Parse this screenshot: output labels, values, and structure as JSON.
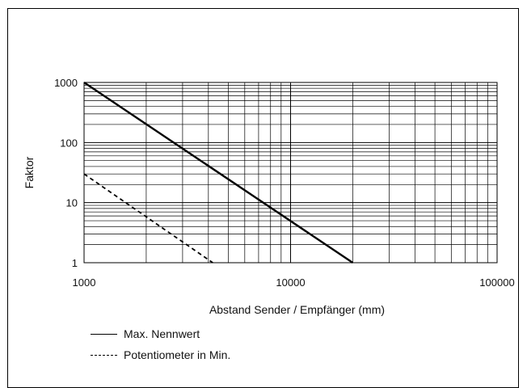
{
  "chart_data": {
    "type": "line",
    "xscale": "log",
    "yscale": "log",
    "xlabel": "Abstand Sender / Empfänger (mm)",
    "ylabel": "Faktor",
    "xlim": [
      1000,
      100000
    ],
    "ylim": [
      1,
      1000
    ],
    "x_ticks": [
      "1000",
      "10000",
      "100000"
    ],
    "y_ticks": [
      "1000",
      "100",
      "10",
      "1"
    ],
    "grid": true,
    "series": [
      {
        "name": "Max. Nennwert",
        "style": "solid",
        "x": [
          1000,
          20000
        ],
        "y": [
          1000,
          1
        ]
      },
      {
        "name": "Potentiometer in Min.",
        "style": "dashed",
        "x": [
          1000,
          4200
        ],
        "y": [
          30,
          1
        ]
      }
    ]
  },
  "legend": [
    {
      "label": "Max. Nennwert",
      "style": "solid"
    },
    {
      "label": "Potentiometer in Min.",
      "style": "dashed"
    }
  ],
  "colors": {
    "line": "#000000",
    "grid": "#000000",
    "background": "#ffffff"
  }
}
